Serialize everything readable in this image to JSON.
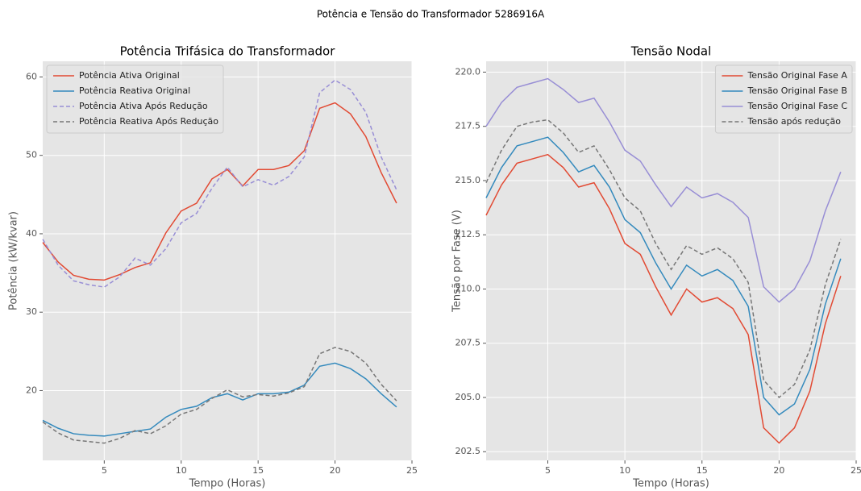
{
  "title": "Potência e Tensão do Transformador 5286916A",
  "chart_data": [
    {
      "type": "line",
      "title": "Potência Trifásica do Transformador",
      "xlabel": "Tempo (Horas)",
      "ylabel": "Potência (kW/kvar)",
      "x": [
        1,
        2,
        3,
        4,
        5,
        6,
        7,
        8,
        9,
        10,
        11,
        12,
        13,
        14,
        15,
        16,
        17,
        18,
        19,
        20,
        21,
        22,
        23,
        24
      ],
      "xlim": [
        1,
        25
      ],
      "xticks": [
        5,
        10,
        15,
        20,
        25
      ],
      "ylim": [
        11.1,
        62
      ],
      "yticks": [
        20,
        30,
        40,
        50,
        60
      ],
      "grid": true,
      "legend": "upper left",
      "series": [
        {
          "name": "Potência Ativa Original",
          "color": "#E24A33",
          "linestyle": "solid",
          "values": [
            38.9,
            36.4,
            34.7,
            34.2,
            34.1,
            34.8,
            35.7,
            36.3,
            40.1,
            42.9,
            43.9,
            47.0,
            48.2,
            46.1,
            48.2,
            48.2,
            48.7,
            50.6,
            56.0,
            56.7,
            55.3,
            52.4,
            47.8,
            43.9
          ]
        },
        {
          "name": "Potência Reativa Original",
          "color": "#348ABD",
          "linestyle": "solid",
          "values": [
            16.2,
            15.2,
            14.5,
            14.3,
            14.2,
            14.5,
            14.8,
            15.1,
            16.6,
            17.6,
            18.0,
            19.1,
            19.6,
            18.8,
            19.6,
            19.6,
            19.8,
            20.7,
            23.1,
            23.5,
            22.8,
            21.5,
            19.6,
            17.9
          ]
        },
        {
          "name": "Potência Ativa Após Redução",
          "color": "#988ED5",
          "linestyle": "dashed",
          "values": [
            39.3,
            36.0,
            34.0,
            33.5,
            33.2,
            34.5,
            36.9,
            36.0,
            38.1,
            41.4,
            42.6,
            45.8,
            48.5,
            46.0,
            46.9,
            46.2,
            47.3,
            49.8,
            58.0,
            59.6,
            58.4,
            55.5,
            49.8,
            45.6
          ]
        },
        {
          "name": "Potência Reativa Após Redução",
          "color": "#777777",
          "linestyle": "dashed",
          "values": [
            16.0,
            14.6,
            13.7,
            13.5,
            13.3,
            13.9,
            14.9,
            14.5,
            15.5,
            17.0,
            17.6,
            19.0,
            20.1,
            19.2,
            19.5,
            19.3,
            19.7,
            20.5,
            24.7,
            25.5,
            25.0,
            23.5,
            20.8,
            18.7
          ]
        }
      ]
    },
    {
      "type": "line",
      "title": "Tensão Nodal",
      "xlabel": "Tempo (Horas)",
      "ylabel": "Tensão por Fase (V)",
      "x": [
        1,
        2,
        3,
        4,
        5,
        6,
        7,
        8,
        9,
        10,
        11,
        12,
        13,
        14,
        15,
        16,
        17,
        18,
        19,
        20,
        21,
        22,
        23,
        24
      ],
      "xlim": [
        1,
        25
      ],
      "xticks": [
        5,
        10,
        15,
        20,
        25
      ],
      "ylim": [
        202.1,
        220.5
      ],
      "yticks": [
        202.5,
        {
          "value": 205,
          "label": "205.0"
        },
        207.5,
        {
          "value": 210,
          "label": "210.0"
        },
        212.5,
        {
          "value": 215,
          "label": "215.0"
        },
        217.5,
        {
          "value": 220,
          "label": "220.0"
        }
      ],
      "grid": true,
      "legend": "upper right",
      "series": [
        {
          "name": "Tensão Original Fase A",
          "color": "#E24A33",
          "linestyle": "solid",
          "values": [
            213.4,
            214.8,
            215.8,
            216.0,
            216.2,
            215.6,
            214.7,
            214.9,
            213.7,
            212.1,
            211.6,
            210.1,
            208.8,
            210.0,
            209.4,
            209.6,
            209.1,
            207.9,
            203.6,
            202.9,
            203.6,
            205.3,
            208.4,
            210.6
          ]
        },
        {
          "name": "Tensão Original Fase B",
          "color": "#348ABD",
          "linestyle": "solid",
          "values": [
            214.2,
            215.6,
            216.6,
            216.8,
            217.0,
            216.3,
            215.4,
            215.7,
            214.7,
            213.2,
            212.6,
            211.2,
            210.0,
            211.1,
            210.6,
            210.9,
            210.4,
            209.2,
            205.0,
            204.2,
            204.7,
            206.3,
            209.3,
            211.4
          ]
        },
        {
          "name": "Tensão Original Fase C",
          "color": "#988ED5",
          "linestyle": "solid",
          "values": [
            217.5,
            218.6,
            219.3,
            219.5,
            219.7,
            219.2,
            218.6,
            218.8,
            217.7,
            216.4,
            215.9,
            214.8,
            213.8,
            214.7,
            214.2,
            214.4,
            214.0,
            213.3,
            210.1,
            209.4,
            210.0,
            211.3,
            213.6,
            215.4
          ]
        },
        {
          "name": "Tensão após redução",
          "color": "#777777",
          "linestyle": "dashed",
          "values": [
            214.9,
            216.4,
            217.5,
            217.7,
            217.8,
            217.2,
            216.3,
            216.6,
            215.5,
            214.2,
            213.6,
            212.1,
            210.9,
            212.0,
            211.6,
            211.9,
            211.4,
            210.3,
            205.8,
            205.0,
            205.6,
            207.2,
            210.2,
            212.3
          ]
        }
      ]
    }
  ]
}
